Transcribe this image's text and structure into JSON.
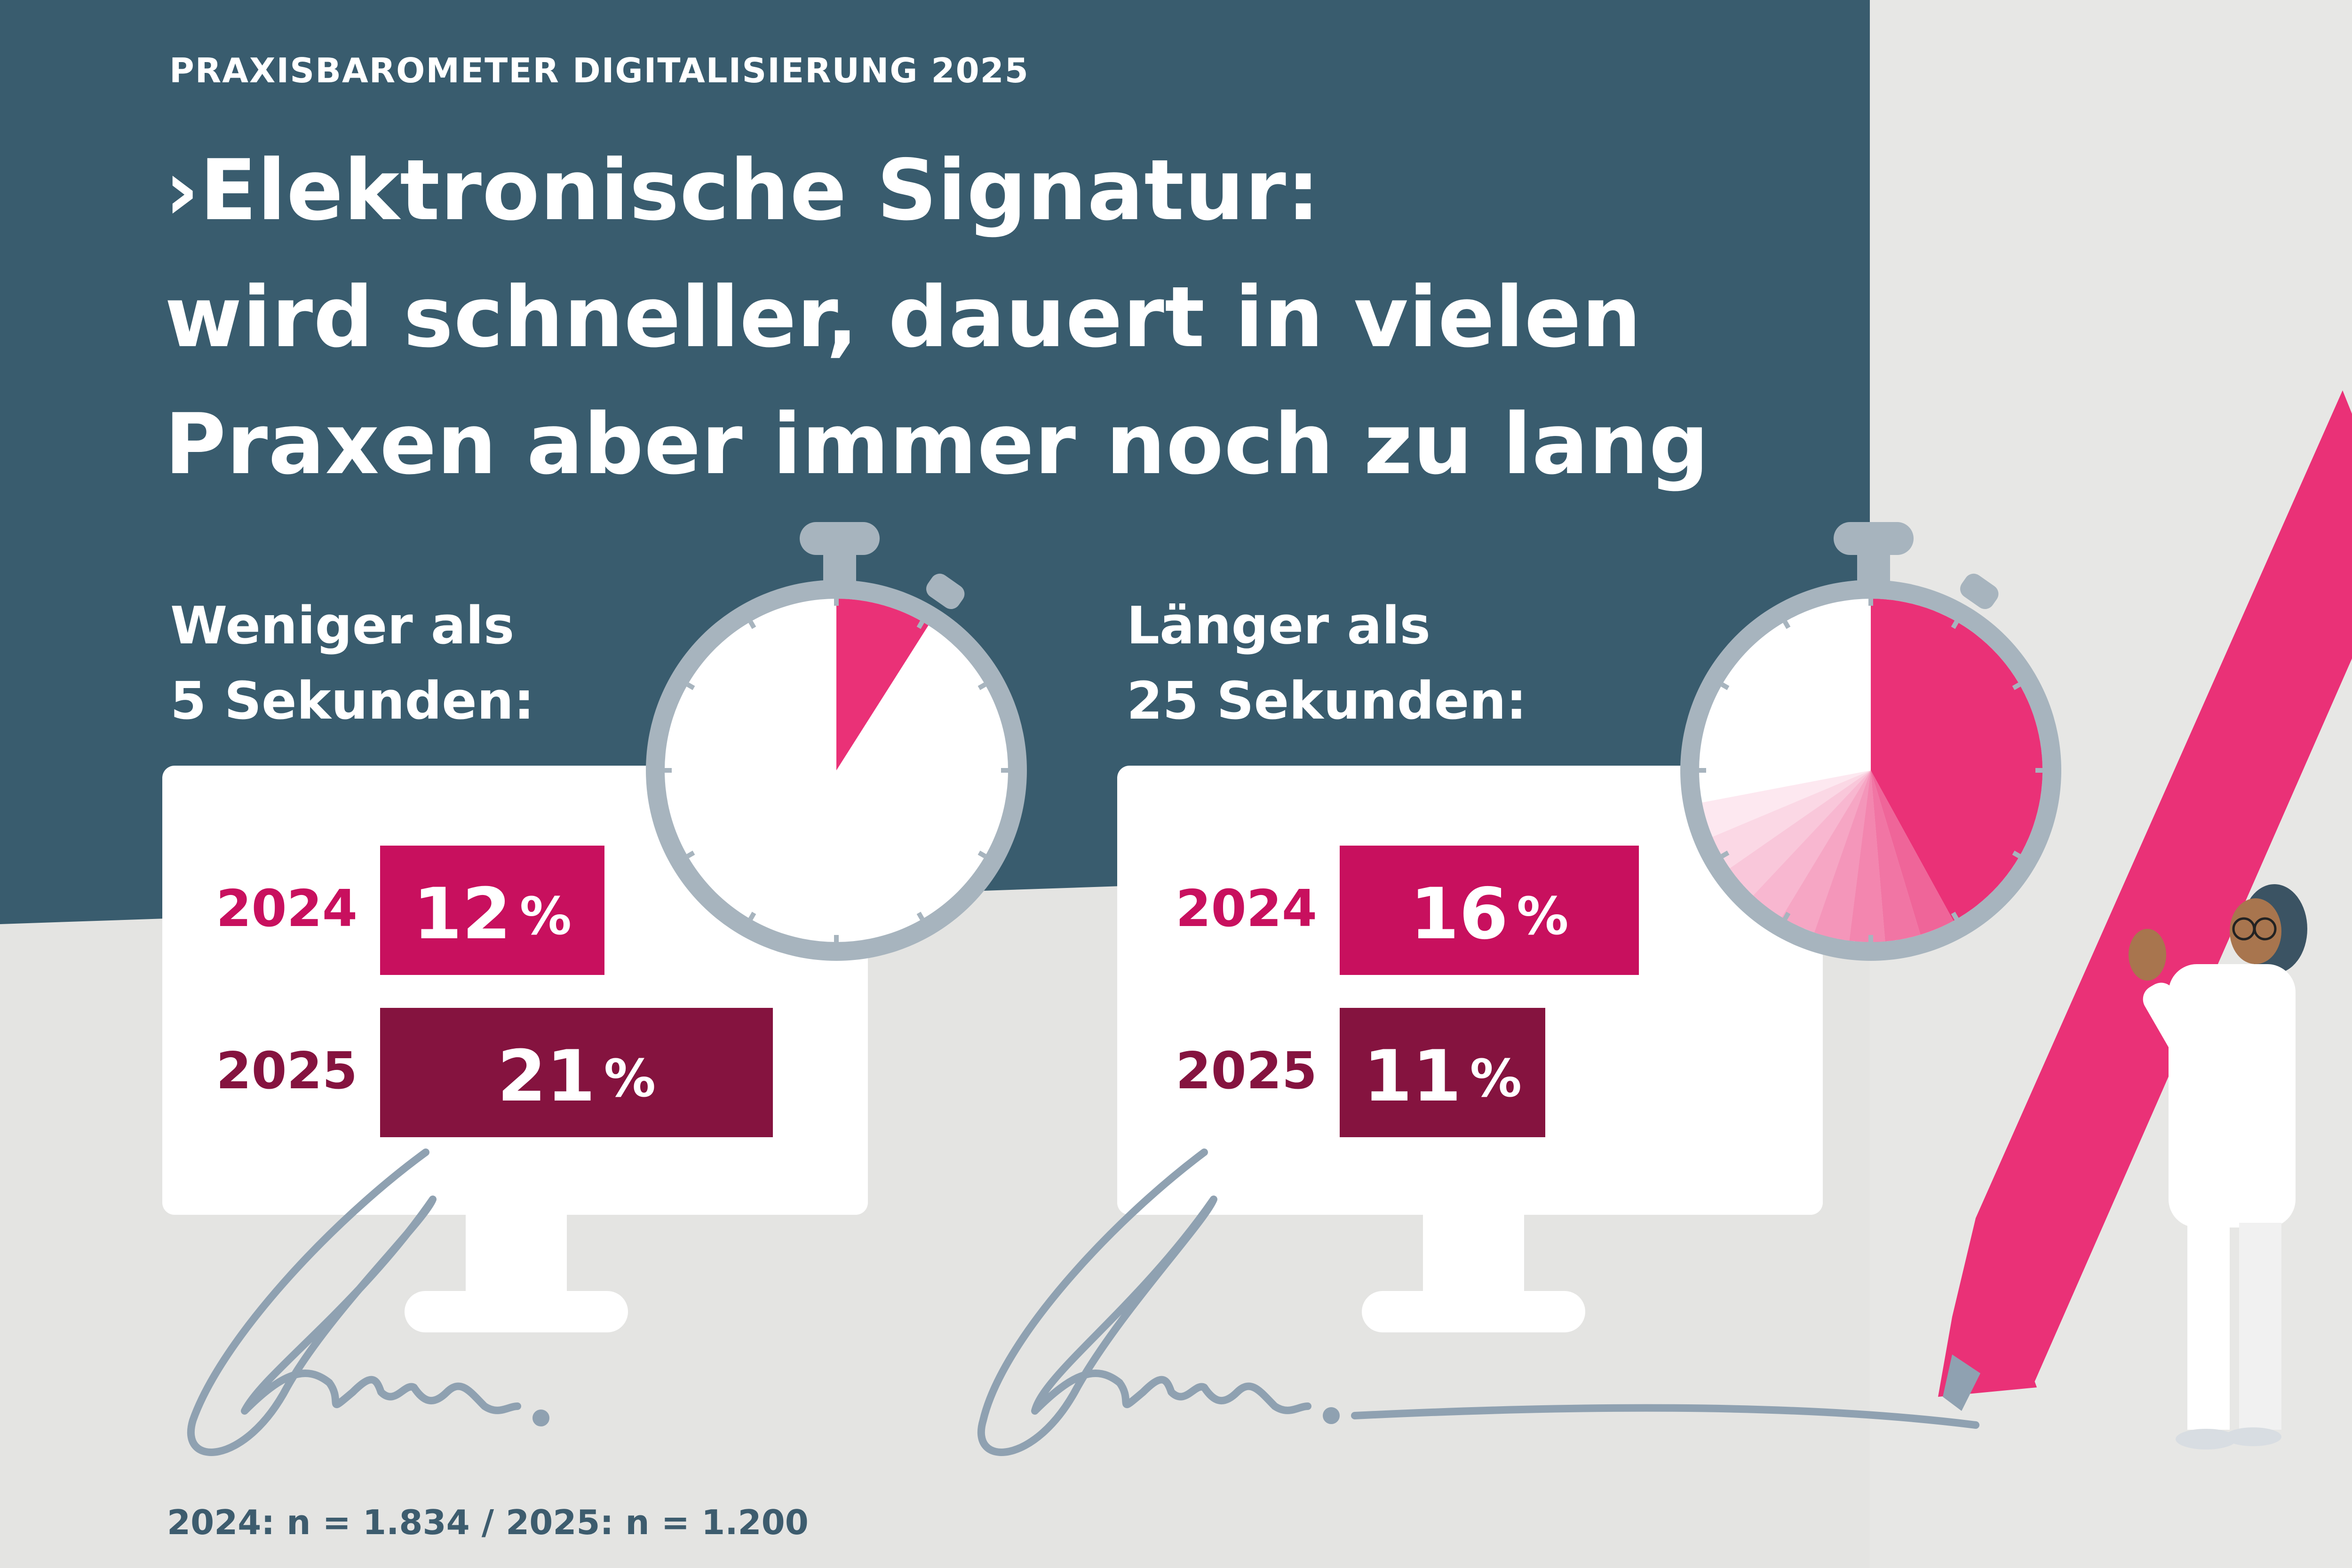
{
  "kicker": "PRAXISBAROMETER DIGITALISIERUNG 2025",
  "headline": {
    "marker": "›",
    "line1": "Elektronische Signatur:",
    "line2": "wird schneller, dauert in vielen",
    "line3": "Praxen aber immer noch zu lang"
  },
  "colors": {
    "header_bg": "#395c6e",
    "background": "#e4e4e2",
    "bar_2024": "#c8105e",
    "bar_2025": "#85133f",
    "timer_fill": "#ea3177",
    "timer_ring": "#a7b4be",
    "signature": "#8fa1b1"
  },
  "chart_data": [
    {
      "type": "bar",
      "title_line1": "Weniger als",
      "title_line2": "5 Sekunden:",
      "categories": [
        "2024",
        "2025"
      ],
      "values": [
        12,
        21
      ],
      "value_labels": [
        "12",
        "21"
      ],
      "unit": "%",
      "xlim": [
        0,
        21
      ],
      "timer_share": 0.09
    },
    {
      "type": "bar",
      "title_line1": "Länger als",
      "title_line2": "25 Sekunden:",
      "categories": [
        "2024",
        "2025"
      ],
      "values": [
        16,
        11
      ],
      "value_labels": [
        "16",
        "11"
      ],
      "unit": "%",
      "xlim": [
        0,
        21
      ],
      "timer_share": 0.42
    }
  ],
  "footnote": "2024: n = 1.834  /  2025: n = 1.200",
  "icons": {
    "stopwatch": "stopwatch-icon",
    "monitor": "monitor-icon",
    "signature": "signature-icon",
    "pen": "pen-icon",
    "person": "doctor-illustration"
  }
}
